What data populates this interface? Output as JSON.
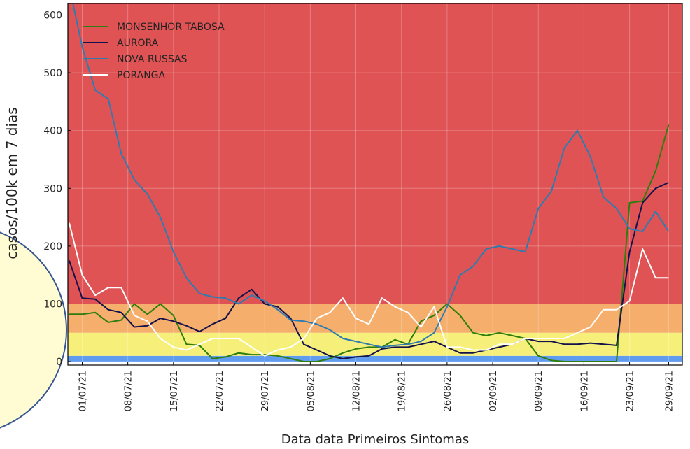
{
  "chart_data": {
    "type": "line",
    "xlabel": "Data data Primeiros Sintomas",
    "ylabel": "casos/100k em 7 dias",
    "x": [
      -2,
      0,
      2,
      4,
      6,
      8,
      10,
      12,
      14,
      16,
      18,
      20,
      22,
      24,
      26,
      28,
      30,
      32,
      34,
      36,
      38,
      40,
      42,
      44,
      46,
      48,
      50,
      52,
      54,
      56,
      58,
      60,
      62,
      64,
      66,
      68,
      70,
      72,
      74,
      76,
      78,
      80,
      82,
      84,
      86,
      88,
      90
    ],
    "xlim": [
      -2.2,
      92.1
    ],
    "xticks": [
      {
        "value": 0,
        "label": "01/07/21"
      },
      {
        "value": 7,
        "label": "08/07/21"
      },
      {
        "value": 14,
        "label": "15/07/21"
      },
      {
        "value": 21,
        "label": "22/07/21"
      },
      {
        "value": 28,
        "label": "29/07/21"
      },
      {
        "value": 35,
        "label": "05/08/21"
      },
      {
        "value": 42,
        "label": "12/08/21"
      },
      {
        "value": 49,
        "label": "19/08/21"
      },
      {
        "value": 56,
        "label": "26/08/21"
      },
      {
        "value": 63,
        "label": "02/09/21"
      },
      {
        "value": 70,
        "label": "09/09/21"
      },
      {
        "value": 77,
        "label": "16/09/21"
      },
      {
        "value": 84,
        "label": "23/09/21"
      },
      {
        "value": 90,
        "label": "29/09/21"
      }
    ],
    "ylim": [
      -6,
      620
    ],
    "yticks": [
      0,
      100,
      200,
      300,
      400,
      500,
      600
    ],
    "grid": true,
    "legend": "upper left",
    "bands": [
      {
        "from": 0,
        "to": 10,
        "color": "#5f9bef"
      },
      {
        "from": 10,
        "to": 50,
        "color": "#f6f07a"
      },
      {
        "from": 50,
        "to": 100,
        "color": "#f5ae6c"
      },
      {
        "from": 100,
        "to": 620,
        "color": "#e05355"
      }
    ],
    "series": [
      {
        "name": "MONSENHOR TABOSA",
        "color": "#2e7d0e",
        "values": [
          82,
          82,
          85,
          68,
          72,
          100,
          82,
          100,
          80,
          30,
          28,
          5,
          8,
          15,
          12,
          12,
          10,
          5,
          0,
          0,
          5,
          15,
          22,
          25,
          25,
          38,
          30,
          70,
          80,
          100,
          80,
          50,
          45,
          50,
          45,
          40,
          10,
          2,
          0,
          0,
          0,
          0,
          0,
          275,
          278,
          330,
          410
        ]
      },
      {
        "name": "AURORA",
        "color": "#14124a",
        "values": [
          175,
          110,
          108,
          90,
          85,
          60,
          62,
          75,
          70,
          62,
          52,
          65,
          75,
          110,
          125,
          100,
          95,
          75,
          30,
          20,
          10,
          5,
          8,
          10,
          22,
          25,
          25,
          30,
          35,
          25,
          15,
          15,
          20,
          25,
          30,
          40,
          35,
          35,
          30,
          30,
          32,
          30,
          28,
          190,
          275,
          300,
          310
        ]
      },
      {
        "name": "NOVA RUSSAS",
        "color": "#2f7bb0",
        "values": [
          650,
          545,
          470,
          455,
          360,
          315,
          290,
          250,
          190,
          145,
          118,
          112,
          110,
          100,
          115,
          105,
          90,
          72,
          70,
          65,
          55,
          40,
          35,
          30,
          25,
          28,
          30,
          35,
          50,
          95,
          150,
          165,
          195,
          200,
          195,
          190,
          265,
          295,
          370,
          400,
          355,
          285,
          265,
          230,
          225,
          260,
          225
        ]
      },
      {
        "name": "PORANGA",
        "color": "#ffffff",
        "values": [
          240,
          150,
          115,
          128,
          128,
          80,
          70,
          40,
          25,
          20,
          30,
          40,
          40,
          40,
          25,
          10,
          20,
          25,
          40,
          75,
          85,
          110,
          75,
          65,
          110,
          95,
          85,
          60,
          95,
          25,
          25,
          20,
          20,
          30,
          30,
          40,
          40,
          40,
          40,
          50,
          60,
          90,
          90,
          105,
          195,
          145,
          145
        ]
      }
    ]
  }
}
